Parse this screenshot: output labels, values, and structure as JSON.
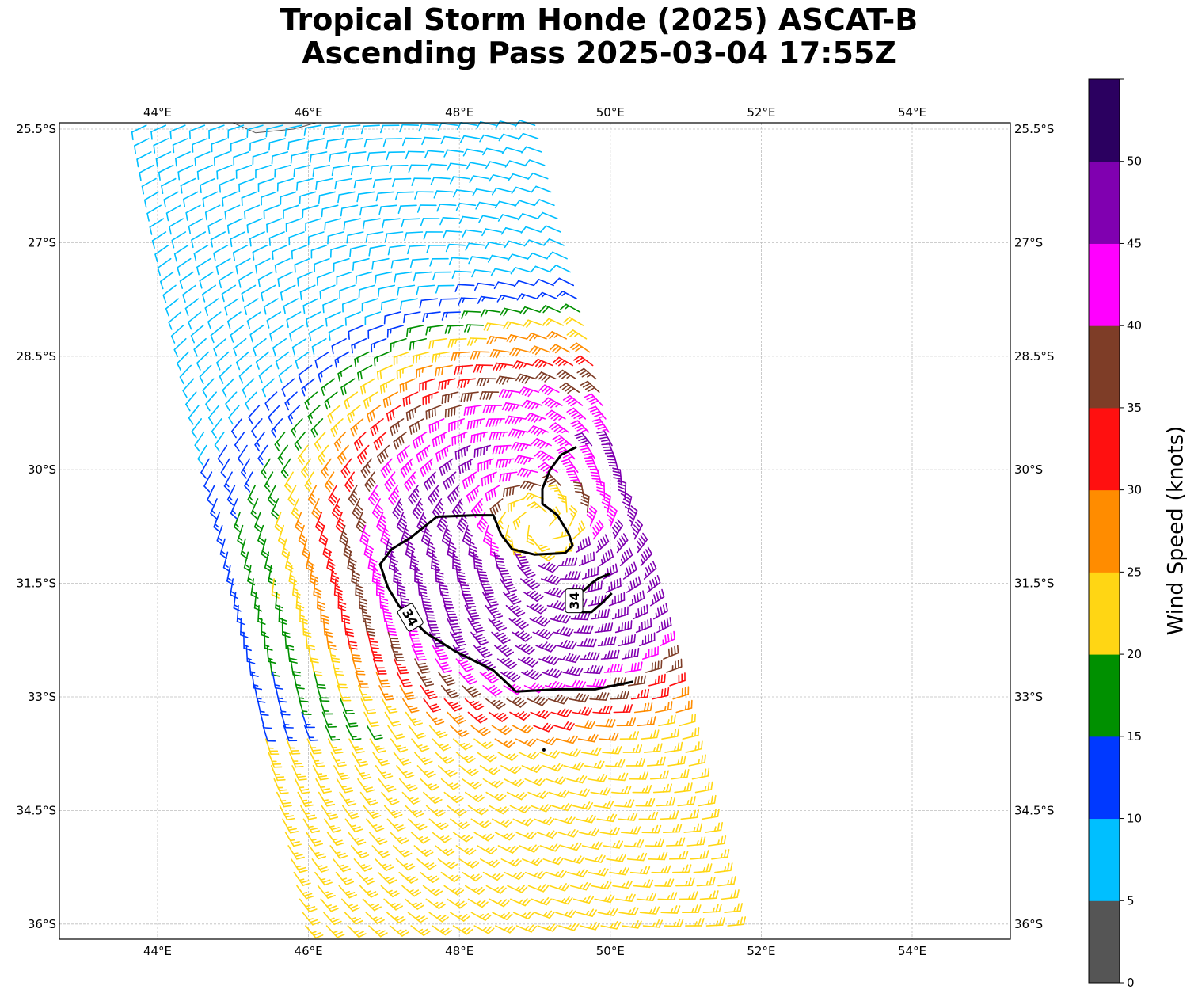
{
  "title": {
    "line1": "Tropical Storm Honde (2025) ASCAT-B",
    "line2": "Ascending Pass 2025-03-04 17:55Z"
  },
  "map": {
    "lon_range": [
      42.7,
      55.3
    ],
    "lat_range": [
      -36.2,
      -25.4
    ],
    "lon_ticks": [
      {
        "value": 44,
        "label": "44°E"
      },
      {
        "value": 46,
        "label": "46°E"
      },
      {
        "value": 48,
        "label": "48°E"
      },
      {
        "value": 50,
        "label": "50°E"
      },
      {
        "value": 52,
        "label": "52°E"
      },
      {
        "value": 54,
        "label": "54°E"
      }
    ],
    "lat_ticks": [
      {
        "value": -25.5,
        "label": "25.5°S"
      },
      {
        "value": -27,
        "label": "27°S"
      },
      {
        "value": -28.5,
        "label": "28.5°S"
      },
      {
        "value": -30,
        "label": "30°S"
      },
      {
        "value": -31.5,
        "label": "31.5°S"
      },
      {
        "value": -33,
        "label": "33°S"
      },
      {
        "value": -34.5,
        "label": "34.5°S"
      },
      {
        "value": -36,
        "label": "36°S"
      }
    ],
    "gridlines": true,
    "storm_center": {
      "lon": 49.1,
      "lat": -30.7
    },
    "contour_34kt": {
      "value": 34,
      "labels": [
        "34",
        "34"
      ],
      "paths": [
        [
          [
            49.55,
            -29.7
          ],
          [
            49.35,
            -29.8
          ],
          [
            49.2,
            -30.0
          ],
          [
            49.1,
            -30.25
          ],
          [
            49.1,
            -30.45
          ],
          [
            49.3,
            -30.6
          ],
          [
            49.45,
            -30.85
          ],
          [
            49.5,
            -31.0
          ],
          [
            49.4,
            -31.1
          ],
          [
            49.0,
            -31.12
          ],
          [
            48.7,
            -31.05
          ],
          [
            48.55,
            -30.85
          ],
          [
            48.45,
            -30.6
          ],
          [
            48.2,
            -30.6
          ],
          [
            47.7,
            -30.62
          ],
          [
            47.35,
            -30.9
          ],
          [
            47.1,
            -31.05
          ],
          [
            46.95,
            -31.25
          ],
          [
            47.05,
            -31.55
          ],
          [
            47.2,
            -31.8
          ],
          [
            47.55,
            -32.15
          ],
          [
            47.95,
            -32.4
          ],
          [
            48.45,
            -32.65
          ],
          [
            48.75,
            -32.93
          ],
          [
            49.3,
            -32.9
          ],
          [
            49.8,
            -32.9
          ],
          [
            50.3,
            -32.8
          ]
        ],
        [
          [
            49.62,
            -31.62
          ],
          [
            49.75,
            -31.5
          ],
          [
            49.85,
            -31.43
          ],
          [
            50.0,
            -31.37
          ]
        ],
        [
          [
            49.6,
            -31.88
          ],
          [
            49.75,
            -31.88
          ],
          [
            49.9,
            -31.75
          ],
          [
            50.02,
            -31.63
          ]
        ]
      ]
    },
    "land": [
      [
        45.0,
        -25.4
      ],
      [
        45.3,
        -25.55
      ],
      [
        45.8,
        -25.5
      ],
      [
        46.1,
        -25.4
      ]
    ]
  },
  "colorbar": {
    "label": "Wind Speed (knots)",
    "ticks": [
      "0",
      "5",
      "10",
      "15",
      "20",
      "25",
      "30",
      "35",
      "40",
      "45",
      "50"
    ],
    "bins": [
      {
        "min": 0,
        "max": 5,
        "color": "#555555"
      },
      {
        "min": 5,
        "max": 10,
        "color": "#00bfff"
      },
      {
        "min": 10,
        "max": 15,
        "color": "#0039ff"
      },
      {
        "min": 15,
        "max": 20,
        "color": "#009000"
      },
      {
        "min": 20,
        "max": 25,
        "color": "#ffd614"
      },
      {
        "min": 25,
        "max": 30,
        "color": "#ff8c00"
      },
      {
        "min": 30,
        "max": 35,
        "color": "#ff1010"
      },
      {
        "min": 35,
        "max": 40,
        "color": "#7e3d27"
      },
      {
        "min": 40,
        "max": 45,
        "color": "#ff00ff"
      },
      {
        "min": 45,
        "max": 50,
        "color": "#8000b0"
      },
      {
        "min": 50,
        "max": 55,
        "color": "#2b0060"
      }
    ]
  }
}
